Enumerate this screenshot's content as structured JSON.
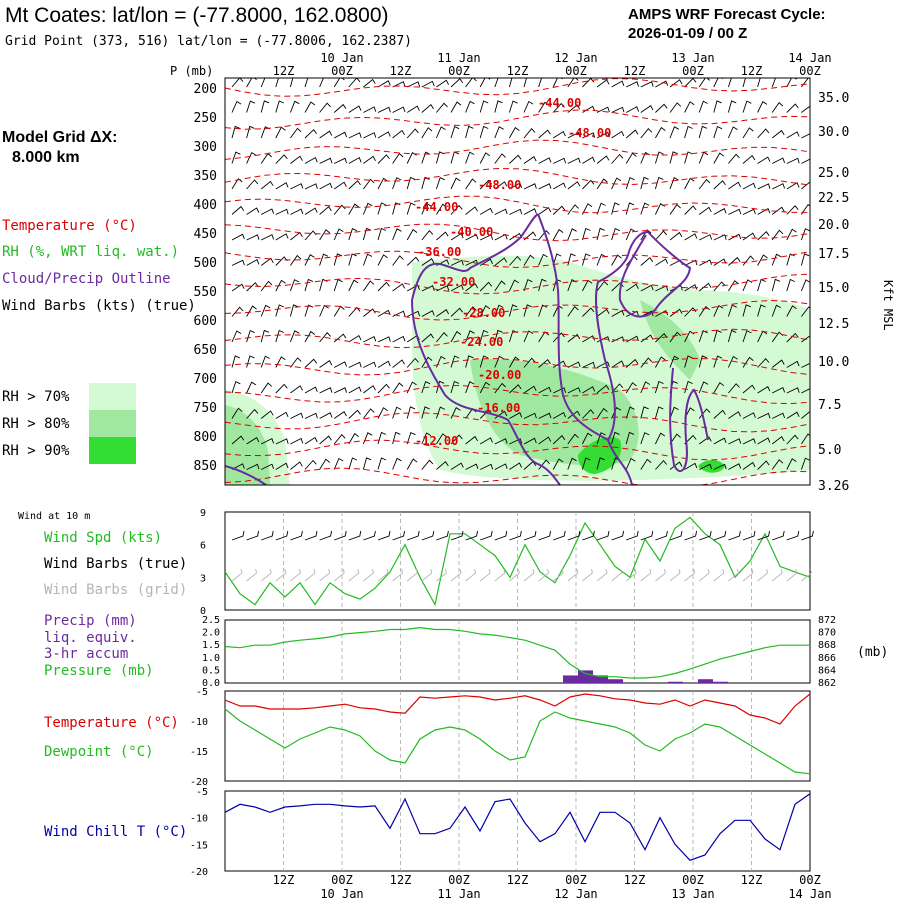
{
  "header": {
    "title": "Mt Coates:  lat/lon = (-77.8000, 162.0800)",
    "grid": "Grid Point (373, 516) lat/lon = (-77.8006, 162.2387)",
    "forecast_line1": "AMPS WRF Forecast Cycle:",
    "forecast_line2": "2026-01-09 / 00  Z"
  },
  "left": {
    "model_grid_line1": "Model Grid ΔX:",
    "model_grid_line2": "8.000 km",
    "temp_legend": "Temperature (°C)",
    "rh_legend": "RH (%, WRT liq. wat.)",
    "cloud_legend": "Cloud/Precip Outline",
    "wind_legend": "Wind Barbs (kts) (true)",
    "rh70": "RH > 70%",
    "rh80": "RH > 80%",
    "rh90": "RH > 90%",
    "rh_colors": [
      "#d4fad4",
      "#a0e8a0",
      "#33dd33"
    ]
  },
  "time_axis": {
    "hour_ticks": [
      "12Z",
      "00Z",
      "12Z",
      "00Z",
      "12Z",
      "00Z",
      "12Z",
      "00Z",
      "12Z",
      "00Z"
    ],
    "date_ticks": [
      "10 Jan",
      "11 Jan",
      "12 Jan",
      "13 Jan",
      "14 Jan"
    ]
  },
  "colors": {
    "temp": "#dd0000",
    "rh": "#22bb22",
    "cloud": "#6a2aa0",
    "wind": "#000000",
    "windchill": "#0000aa"
  },
  "chart_data": [
    {
      "type": "heatmap",
      "name": "cross-section",
      "pressure_label": "P (mb)",
      "pressure_ticks": [
        "200",
        "250",
        "300",
        "350",
        "400",
        "450",
        "500",
        "550",
        "600",
        "650",
        "700",
        "750",
        "800",
        "850"
      ],
      "height_label": "Kft MSL",
      "height_ticks": [
        "35.0",
        "30.0",
        "25.0",
        "22.5",
        "20.0",
        "17.5",
        "15.0",
        "12.5",
        "10.0",
        "7.5",
        "5.0",
        "3.26"
      ],
      "temp_labels": [
        "-44.00",
        "-48.00",
        "-48.00",
        "-44.00",
        "-40.00",
        "-36.00",
        "-32.00",
        "-28.00",
        "-24.00",
        "-20.00",
        "-16.00",
        "-12.00"
      ]
    },
    {
      "type": "line",
      "name": "wind-10m",
      "label": "Wind at 10 m",
      "series_labels": [
        "Wind Spd (kts)",
        "Wind Barbs (true)",
        "Wind Barbs (grid)"
      ],
      "y_ticks": [
        "0",
        "3",
        "6",
        "9"
      ],
      "ylim": [
        0,
        9
      ],
      "values": [
        3.5,
        1.5,
        0.5,
        2.5,
        1.2,
        2.5,
        0.5,
        2.5,
        1.5,
        1.0,
        2.0,
        3.5,
        6.0,
        3.0,
        0.5,
        7.0,
        7.0,
        6.0,
        5.0,
        3.0,
        6.0,
        3.5,
        2.5,
        5.0,
        8.0,
        6.0,
        4.0,
        3.0,
        6.5,
        4.5,
        7.5,
        8.5,
        7.0,
        6.0,
        3.0,
        4.5,
        7.0,
        4.0,
        3.5,
        3.0
      ]
    },
    {
      "type": "line",
      "name": "precip-pressure",
      "series_labels": [
        "Precip (mm)",
        "liq. equiv.",
        "3-hr accum",
        "Pressure (mb)"
      ],
      "left_ticks": [
        "0.0",
        "0.5",
        "1.0",
        "1.5",
        "2.0",
        "2.5"
      ],
      "right_ticks": [
        "862",
        "864",
        "866",
        "868",
        "870",
        "872"
      ],
      "right_unit": "(mb)",
      "pressure": [
        867.8,
        867.6,
        868.0,
        868.0,
        868.5,
        868.8,
        869.0,
        869.3,
        869.8,
        870.0,
        870.2,
        870.5,
        870.5,
        870.8,
        870.5,
        870.5,
        870.2,
        869.8,
        869.6,
        869.2,
        868.8,
        868.0,
        867.2,
        865.0,
        863.5,
        863.0,
        863.0,
        862.8,
        862.8,
        863.0,
        863.5,
        864.2,
        865.0,
        865.8,
        866.4,
        867.0,
        867.6,
        868.0,
        868.0,
        868.0
      ],
      "precip": [
        0,
        0,
        0,
        0,
        0,
        0,
        0,
        0,
        0,
        0,
        0,
        0,
        0,
        0,
        0,
        0,
        0,
        0,
        0,
        0,
        0,
        0,
        0,
        0.3,
        0.5,
        0.3,
        0.15,
        0,
        0,
        0,
        0.05,
        0,
        0.15,
        0.05,
        0,
        0,
        0,
        0,
        0,
        0
      ]
    },
    {
      "type": "line",
      "name": "temp-dewpoint",
      "series_labels": [
        "Temperature (°C)",
        "Dewpoint (°C)"
      ],
      "y_ticks": [
        "-5",
        "-10",
        "-15",
        "-20"
      ],
      "ylim": [
        -20,
        -5
      ],
      "temperature": [
        -6.5,
        -7.5,
        -7.5,
        -8.0,
        -8.0,
        -8.0,
        -7.8,
        -7.5,
        -7.2,
        -7.8,
        -8.0,
        -8.5,
        -8.7,
        -6.0,
        -6.2,
        -6.0,
        -5.8,
        -6.0,
        -6.5,
        -6.2,
        -5.8,
        -6.5,
        -7.5,
        -6.0,
        -5.5,
        -5.8,
        -6.3,
        -6.5,
        -7.0,
        -7.2,
        -6.5,
        -7.5,
        -6.5,
        -7.0,
        -7.5,
        -9.0,
        -9.5,
        -10.5,
        -7.5,
        -5.5
      ],
      "dewpoint": [
        -8.0,
        -10.0,
        -11.5,
        -13.0,
        -14.5,
        -13.0,
        -12.0,
        -11.0,
        -11.5,
        -12.5,
        -15.0,
        -16.5,
        -17.0,
        -13.0,
        -11.5,
        -11.0,
        -11.5,
        -13.0,
        -15.0,
        -16.5,
        -16.0,
        -10.0,
        -8.5,
        -9.5,
        -10.0,
        -10.5,
        -11.0,
        -12.0,
        -14.0,
        -15.0,
        -13.0,
        -12.0,
        -10.5,
        -11.0,
        -12.5,
        -14.0,
        -15.5,
        -17.0,
        -18.5,
        -18.8
      ]
    },
    {
      "type": "line",
      "name": "wind-chill",
      "series_labels": [
        "Wind Chill T (°C)"
      ],
      "y_ticks": [
        "-5",
        "-10",
        "-15",
        "-20"
      ],
      "ylim": [
        -20,
        -5
      ],
      "values": [
        -9.0,
        -7.5,
        -8.0,
        -9.0,
        -8.0,
        -7.8,
        -7.5,
        -7.5,
        -7.8,
        -8.0,
        -7.8,
        -12.0,
        -6.5,
        -13.0,
        -13.0,
        -12.0,
        -8.0,
        -12.5,
        -7.0,
        -6.5,
        -11.0,
        -14.5,
        -13.0,
        -9.0,
        -14.5,
        -9.0,
        -9.0,
        -11.0,
        -16.0,
        -10.0,
        -15.0,
        -18.0,
        -17.0,
        -13.0,
        -10.5,
        -10.5,
        -14.0,
        -16.0,
        -7.5,
        -5.5
      ]
    }
  ]
}
